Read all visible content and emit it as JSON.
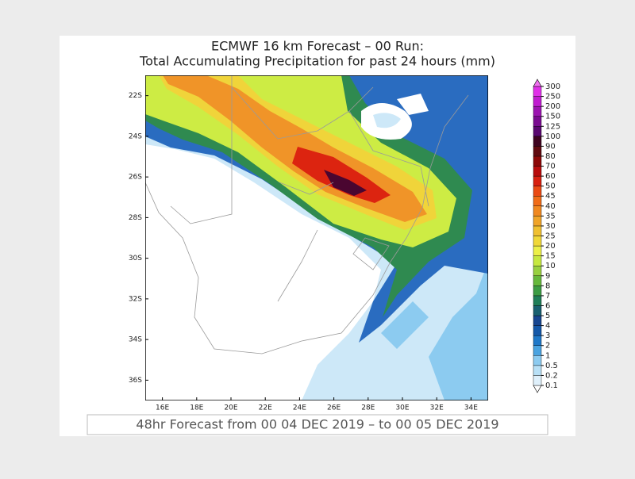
{
  "title": [
    "ECMWF 16 km Forecast – 00 Run:",
    "Total Accumulating Precipitation for past 24 hours (mm)"
  ],
  "map": {
    "lonlim": [
      15,
      35
    ],
    "latlim": [
      -37,
      -21
    ],
    "lon_ticks": [
      {
        "value": 16,
        "label": "16E"
      },
      {
        "value": 18,
        "label": "18E"
      },
      {
        "value": 20,
        "label": "20E"
      },
      {
        "value": 22,
        "label": "22E"
      },
      {
        "value": 24,
        "label": "24E"
      },
      {
        "value": 26,
        "label": "26E"
      },
      {
        "value": 28,
        "label": "28E"
      },
      {
        "value": 30,
        "label": "30E"
      },
      {
        "value": 32,
        "label": "32E"
      },
      {
        "value": 34,
        "label": "34E"
      }
    ],
    "lat_ticks": [
      {
        "value": -22,
        "label": "22S"
      },
      {
        "value": -24,
        "label": "24S"
      },
      {
        "value": -26,
        "label": "26S"
      },
      {
        "value": -28,
        "label": "28S"
      },
      {
        "value": -30,
        "label": "30S"
      },
      {
        "value": -32,
        "label": "32S"
      },
      {
        "value": -34,
        "label": "34S"
      },
      {
        "value": -36,
        "label": "36S"
      }
    ]
  },
  "colorbar": {
    "levels": [
      0.1,
      0.2,
      0.5,
      1,
      2,
      3,
      4,
      5,
      6,
      7,
      8,
      9,
      10,
      15,
      20,
      25,
      30,
      35,
      40,
      45,
      50,
      60,
      70,
      80,
      90,
      100,
      125,
      150,
      200,
      250,
      300
    ],
    "colors": [
      "#dff0fb",
      "#b8e0f6",
      "#8ccbf0",
      "#4aa3e0",
      "#1f78c8",
      "#1558a8",
      "#184690",
      "#1a6070",
      "#207e58",
      "#3c9c44",
      "#66b83c",
      "#98d040",
      "#c6e840",
      "#ecf048",
      "#f0d838",
      "#f0c030",
      "#f0a428",
      "#f08820",
      "#f06c18",
      "#ea4a14",
      "#d82010",
      "#b80c0c",
      "#8c0808",
      "#600a10",
      "#3e0420",
      "#5a0870",
      "#7a0c90",
      "#9c14b0",
      "#c01cd0",
      "#e030e8",
      "#f070f0"
    ]
  },
  "footer": "48hr Forecast from 00 04 DEC 2019 – to 00 05 DEC 2019"
}
